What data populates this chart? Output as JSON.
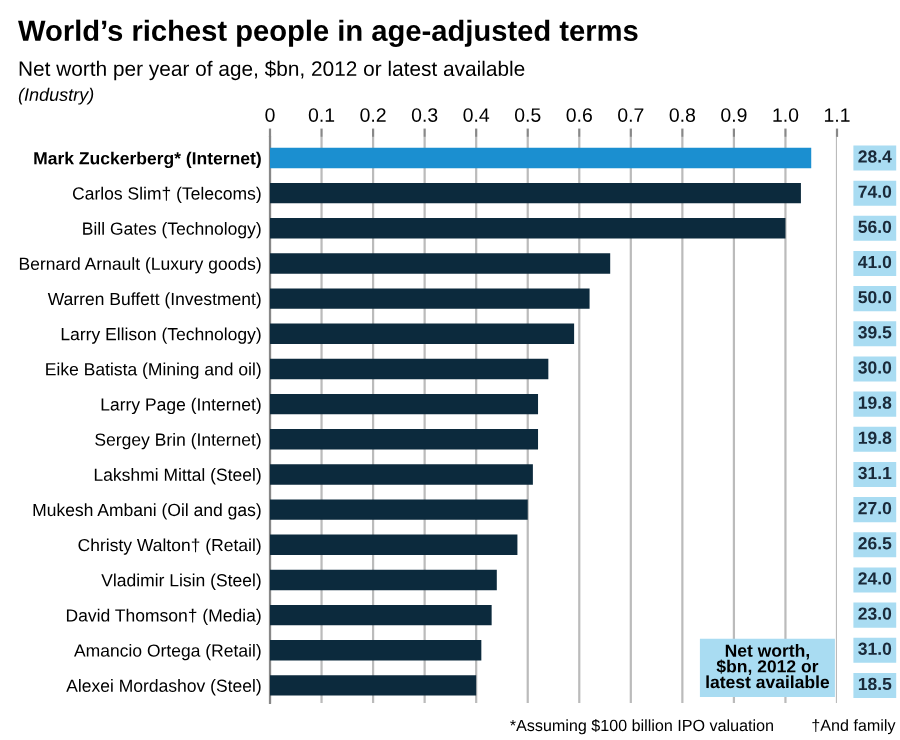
{
  "chart_data": {
    "type": "bar",
    "orientation": "horizontal",
    "title": "World’s richest people in age-adjusted terms",
    "subtitle": "Net worth per year of age, $bn, 2012 or latest available",
    "categories": [
      "Mark Zuckerberg* (Internet)",
      "Carlos Slim† (Telecoms)",
      "Bill Gates (Technology)",
      "Bernard Arnault (Luxury goods)",
      "Warren Buffett (Investment)",
      "Larry Ellison (Technology)",
      "Eike Batista (Mining and oil)",
      "Larry Page (Internet)",
      "Sergey Brin (Internet)",
      "Lakshmi Mittal (Steel)",
      "Mukesh Ambani (Oil and gas)",
      "Christy Walton† (Retail)",
      "Vladimir Lisin (Steel)",
      "David Thomson† (Media)",
      "Amancio Ortega (Retail)",
      "Alexei Mordashov (Steel)"
    ],
    "values": [
      1.05,
      1.03,
      1.0,
      0.66,
      0.62,
      0.59,
      0.54,
      0.52,
      0.52,
      0.51,
      0.5,
      0.48,
      0.44,
      0.43,
      0.41,
      0.4
    ],
    "colors": [
      "#1b8fd0",
      "#0c2a3d",
      "#0c2a3d",
      "#0c2a3d",
      "#0c2a3d",
      "#0c2a3d",
      "#0c2a3d",
      "#0c2a3d",
      "#0c2a3d",
      "#0c2a3d",
      "#0c2a3d",
      "#0c2a3d",
      "#0c2a3d",
      "#0c2a3d",
      "#0c2a3d",
      "#0c2a3d"
    ],
    "xlim": [
      0,
      1.1
    ],
    "xticks": [
      0,
      0.1,
      0.2,
      0.3,
      0.4,
      0.5,
      0.6,
      0.7,
      0.8,
      0.9,
      {
        "value": 1.0,
        "label": "1.0"
      },
      1.1
    ],
    "grid": "x",
    "annotations": [
      "(Industry)",
      "Net worth,\n$bn, 2012 or\nlatest available",
      "*Assuming $100 billion IPO valuation",
      "†And family",
      "28.4",
      "74.0",
      "56.0",
      "41.0",
      "50.0",
      "39.5",
      "30.0",
      "19.8",
      "19.8",
      "31.1",
      "27.0",
      "26.5",
      "24.0",
      "23.0",
      "31.0",
      "18.5"
    ]
  }
}
